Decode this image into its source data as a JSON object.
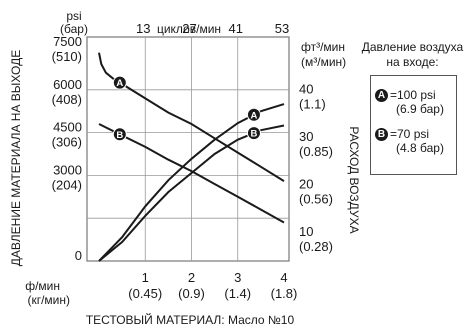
{
  "chart_data": {
    "type": "line",
    "title": "",
    "footer": "ТЕСТОВЫЙ МАТЕРИАЛ: Масло №10",
    "left_axis": {
      "unit_top": "psi",
      "unit_bottom": "(бар)",
      "label": "ДАВЛЕНИЕ МАТЕРИАЛА НА ВЫХОДЕ",
      "ticks": [
        {
          "value": 0,
          "label": "0",
          "sub": ""
        },
        {
          "value": 1500,
          "label": "",
          "sub": ""
        },
        {
          "value": 3000,
          "label": "3000",
          "sub": "(204)"
        },
        {
          "value": 4500,
          "label": "4500",
          "sub": "(306)"
        },
        {
          "value": 6000,
          "label": "6000",
          "sub": "(408)"
        },
        {
          "value": 7500,
          "label": "7500",
          "sub": "(510)"
        }
      ],
      "ylim": [
        0,
        7500
      ]
    },
    "right_axis": {
      "unit_top": "фт³/мин",
      "unit_bottom": "(м³/мин)",
      "label": "РАСХОД ВОЗДУХА",
      "ticks": [
        {
          "value": 10,
          "label": "10",
          "sub": "(0.28)"
        },
        {
          "value": 20,
          "label": "20",
          "sub": "(0.56)"
        },
        {
          "value": 30,
          "label": "30",
          "sub": "(0.85)"
        },
        {
          "value": 40,
          "label": "40",
          "sub": "(1.1)"
        }
      ],
      "ylim": [
        5,
        50
      ]
    },
    "bottom_axis": {
      "unit_top": "ф/мин",
      "unit_bottom": "(кг/мин)",
      "ticks": [
        {
          "value": 1,
          "label": "1",
          "sub": "(0.45)"
        },
        {
          "value": 2,
          "label": "2",
          "sub": "(0.9)"
        },
        {
          "value": 3,
          "label": "3",
          "sub": "(1.4)"
        },
        {
          "value": 4,
          "label": "4",
          "sub": "(1.8)"
        }
      ],
      "xlim": [
        0,
        4
      ]
    },
    "top_axis": {
      "label": "циклов/мин",
      "ticks": [
        13,
        27,
        41,
        53
      ]
    },
    "grid": true,
    "series": [
      {
        "name": "A",
        "kind": "pressure",
        "axis": "left",
        "x": [
          0.0,
          0.05,
          0.15,
          0.3,
          0.6,
          1.0,
          1.5,
          2.0,
          2.5,
          3.0,
          3.5,
          4.0
        ],
        "y": [
          7300,
          6900,
          6600,
          6400,
          6100,
          5700,
          5200,
          4800,
          4300,
          3800,
          3300,
          2800
        ]
      },
      {
        "name": "B",
        "kind": "pressure",
        "axis": "left",
        "x": [
          0.0,
          0.5,
          1.0,
          1.5,
          2.0,
          2.5,
          3.0,
          3.5,
          4.0
        ],
        "y": [
          4800,
          4400,
          4000,
          3550,
          3150,
          2700,
          2250,
          1800,
          1350
        ]
      },
      {
        "name": "A",
        "kind": "air",
        "axis": "right",
        "x": [
          0.0,
          0.5,
          1.0,
          1.5,
          2.0,
          2.5,
          3.0,
          3.5,
          4.0
        ],
        "y": [
          5,
          10,
          16.5,
          22,
          26.5,
          30.5,
          34,
          36.5,
          38
        ]
      },
      {
        "name": "B",
        "kind": "air",
        "axis": "right",
        "x": [
          0.0,
          0.5,
          1.0,
          1.5,
          2.0,
          2.5,
          3.0,
          3.5,
          4.0
        ],
        "y": [
          5,
          9,
          14.5,
          19.5,
          23.5,
          27.5,
          30.5,
          32.5,
          33.5
        ]
      }
    ]
  },
  "legend": {
    "title_line1": "Давление воздуха",
    "title_line2": "на входе:",
    "entries": [
      {
        "badge": "A",
        "value": "=100 psi",
        "sub": "(6.9 бар)"
      },
      {
        "badge": "B",
        "value": "=70 psi",
        "sub": "(4.8 бар)"
      }
    ]
  }
}
